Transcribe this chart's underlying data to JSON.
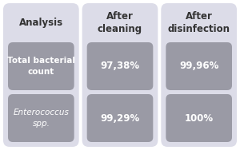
{
  "bg_color": "#dcdce8",
  "cell_color": "#9a9aa5",
  "text_dark": "#333333",
  "text_light": "#ffffff",
  "col_headers": [
    "Analysis",
    "After\ncleaning",
    "After\ndisinfection"
  ],
  "row1_label": "Total bacterial\ncount",
  "row2_label": "Enterococcus\nspp.",
  "row1_col2": "97,38%",
  "row1_col3": "99,96%",
  "row2_col2": "99,29%",
  "row2_col3": "100%",
  "label_fontsize": 7.5,
  "value_fontsize": 8.5,
  "header_fontsize": 8.5,
  "fig_width": 3.0,
  "fig_height": 1.88,
  "dpi": 100
}
